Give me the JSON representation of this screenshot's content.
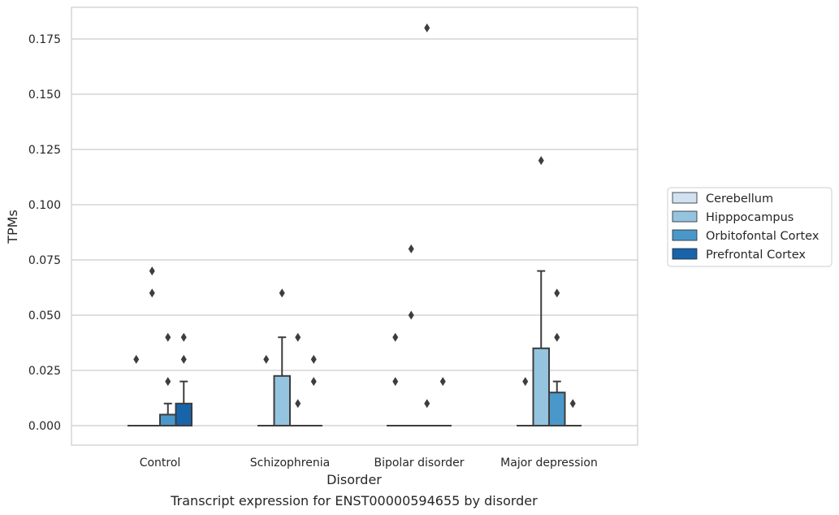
{
  "chart_data": {
    "type": "box",
    "title": "",
    "caption": "Transcript expression for ENST00000594655 by disorder",
    "xlabel": "Disorder",
    "ylabel": "TPMs",
    "ylim": [
      -0.009,
      0.189
    ],
    "yticks": [
      0.0,
      0.025,
      0.05,
      0.075,
      0.1,
      0.125,
      0.15,
      0.175
    ],
    "ytick_labels": [
      "0.000",
      "0.025",
      "0.050",
      "0.075",
      "0.100",
      "0.125",
      "0.150",
      "0.175"
    ],
    "grid": "horizontal",
    "legend_position": "right",
    "categories": [
      "Control",
      "Schizophrenia",
      "Bipolar disorder",
      "Major depression"
    ],
    "series": [
      {
        "name": "Cerebellum",
        "color": "#d0e1f2",
        "boxes": [
          {
            "q1": 0,
            "median": 0,
            "q3": 0,
            "whisker_low": 0,
            "whisker_high": 0,
            "outliers": [
              0.03
            ]
          },
          {
            "q1": 0,
            "median": 0,
            "q3": 0,
            "whisker_low": 0,
            "whisker_high": 0,
            "outliers": [
              0.03
            ]
          },
          {
            "q1": 0,
            "median": 0,
            "q3": 0,
            "whisker_low": 0,
            "whisker_high": 0,
            "outliers": [
              0.04,
              0.02
            ]
          },
          {
            "q1": 0,
            "median": 0,
            "q3": 0,
            "whisker_low": 0,
            "whisker_high": 0,
            "outliers": [
              0.02
            ]
          }
        ]
      },
      {
        "name": "Hipppocampus",
        "color": "#94c4df",
        "boxes": [
          {
            "q1": 0,
            "median": 0,
            "q3": 0,
            "whisker_low": 0,
            "whisker_high": 0,
            "outliers": [
              0.07,
              0.06
            ]
          },
          {
            "q1": 0,
            "median": 0,
            "q3": 0.0225,
            "whisker_low": 0,
            "whisker_high": 0.04,
            "outliers": [
              0.06
            ]
          },
          {
            "q1": 0,
            "median": 0,
            "q3": 0,
            "whisker_low": 0,
            "whisker_high": 0,
            "outliers": [
              0.08,
              0.05
            ]
          },
          {
            "q1": 0,
            "median": 0,
            "q3": 0.035,
            "whisker_low": 0,
            "whisker_high": 0.07,
            "outliers": [
              0.12
            ]
          }
        ]
      },
      {
        "name": "Orbitofontal Cortex",
        "color": "#4a98c9",
        "boxes": [
          {
            "q1": 0,
            "median": 0,
            "q3": 0.005,
            "whisker_low": 0,
            "whisker_high": 0.01,
            "outliers": [
              0.04,
              0.02
            ]
          },
          {
            "q1": 0,
            "median": 0,
            "q3": 0,
            "whisker_low": 0,
            "whisker_high": 0,
            "outliers": [
              0.04,
              0.01
            ]
          },
          {
            "q1": 0,
            "median": 0,
            "q3": 0,
            "whisker_low": 0,
            "whisker_high": 0,
            "outliers": [
              0.18,
              0.01
            ]
          },
          {
            "q1": 0,
            "median": 0,
            "q3": 0.015,
            "whisker_low": 0,
            "whisker_high": 0.02,
            "outliers": [
              0.06,
              0.04
            ]
          }
        ]
      },
      {
        "name": "Prefrontal Cortex",
        "color": "#1764ab",
        "boxes": [
          {
            "q1": 0,
            "median": 0,
            "q3": 0.01,
            "whisker_low": 0,
            "whisker_high": 0.02,
            "outliers": [
              0.04,
              0.03
            ]
          },
          {
            "q1": 0,
            "median": 0,
            "q3": 0,
            "whisker_low": 0,
            "whisker_high": 0,
            "outliers": [
              0.03,
              0.02
            ]
          },
          {
            "q1": 0,
            "median": 0,
            "q3": 0,
            "whisker_low": 0,
            "whisker_high": 0,
            "outliers": [
              0.02
            ]
          },
          {
            "q1": 0,
            "median": 0,
            "q3": 0,
            "whisker_low": 0,
            "whisker_high": 0,
            "outliers": [
              0.01
            ]
          }
        ]
      }
    ]
  }
}
